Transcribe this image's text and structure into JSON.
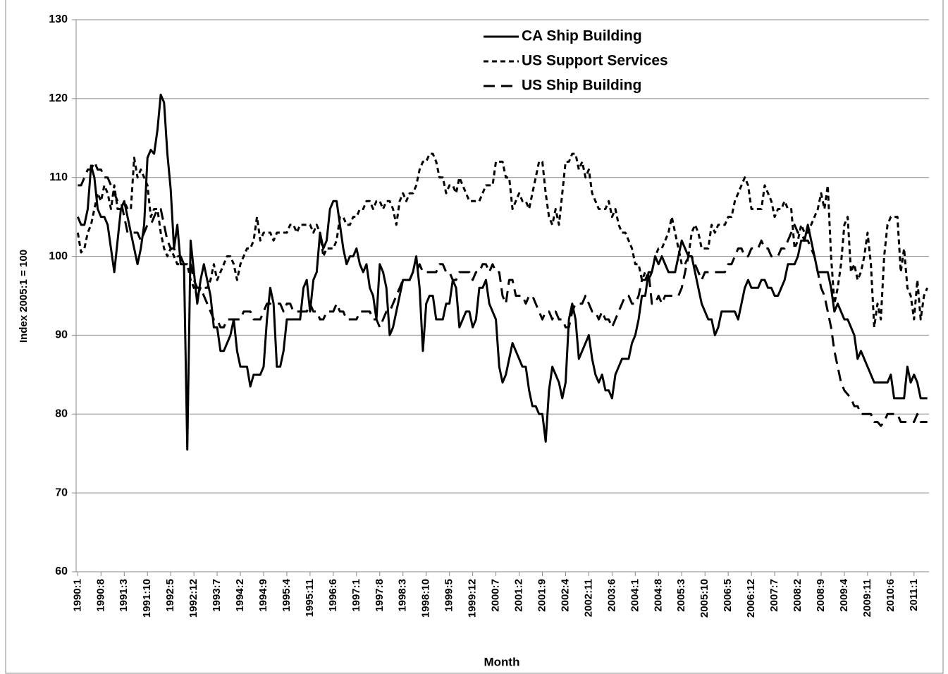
{
  "chart_data": {
    "type": "line",
    "xlabel": "Month",
    "ylabel": "Index 2005:1 = 100",
    "ylim": [
      60,
      130
    ],
    "yticks": [
      60,
      70,
      80,
      90,
      100,
      110,
      120,
      130
    ],
    "grid": true,
    "legend": "top",
    "categories": [
      "1990:1",
      null,
      null,
      null,
      null,
      null,
      null,
      "1990:8",
      null,
      null,
      null,
      null,
      null,
      null,
      "1991:3",
      null,
      null,
      null,
      null,
      null,
      null,
      "1991:10",
      null,
      null,
      null,
      null,
      null,
      null,
      "1992:5",
      null,
      null,
      null,
      null,
      null,
      null,
      "1992:12",
      null,
      null,
      null,
      null,
      null,
      null,
      "1993:7",
      null,
      null,
      null,
      null,
      null,
      null,
      "1994:2",
      null,
      null,
      null,
      null,
      null,
      null,
      "1994:9",
      null,
      null,
      null,
      null,
      null,
      null,
      "1995:4",
      null,
      null,
      null,
      null,
      null,
      null,
      "1995:11",
      null,
      null,
      null,
      null,
      null,
      null,
      "1996:6",
      null,
      null,
      null,
      null,
      null,
      null,
      "1997:1",
      null,
      null,
      null,
      null,
      null,
      null,
      "1997:8",
      null,
      null,
      null,
      null,
      null,
      null,
      "1998:3",
      null,
      null,
      null,
      null,
      null,
      null,
      "1998:10",
      null,
      null,
      null,
      null,
      null,
      null,
      "1999:5",
      null,
      null,
      null,
      null,
      null,
      null,
      "1999:12",
      null,
      null,
      null,
      null,
      null,
      null,
      "2000:7",
      null,
      null,
      null,
      null,
      null,
      null,
      "2001:2",
      null,
      null,
      null,
      null,
      null,
      null,
      "2001:9",
      null,
      null,
      null,
      null,
      null,
      null,
      "2002:4",
      null,
      null,
      null,
      null,
      null,
      null,
      "2002:11",
      null,
      null,
      null,
      null,
      null,
      null,
      "2003:6",
      null,
      null,
      null,
      null,
      null,
      null,
      "2004:1",
      null,
      null,
      null,
      null,
      null,
      null,
      "2004:8",
      null,
      null,
      null,
      null,
      null,
      null,
      "2005:3",
      null,
      null,
      null,
      null,
      null,
      null,
      "2005:10",
      null,
      null,
      null,
      null,
      null,
      null,
      "2006:5",
      null,
      null,
      null,
      null,
      null,
      null,
      "2006:12",
      null,
      null,
      null,
      null,
      null,
      null,
      "2007:7",
      null,
      null,
      null,
      null,
      null,
      null,
      "2008:2",
      null,
      null,
      null,
      null,
      null,
      null,
      "2008:9",
      null,
      null,
      null,
      null,
      null,
      null,
      "2009:4",
      null,
      null,
      null,
      null,
      null,
      null,
      "2009:11",
      null,
      null,
      null,
      null,
      null,
      null,
      "2010:6",
      null,
      null,
      null,
      null,
      null,
      null,
      "2011:1",
      null,
      null,
      null,
      null
    ],
    "series": [
      {
        "name": "CA Ship Building",
        "color": "#000000",
        "style": "solid",
        "values": [
          105,
          104,
          104,
          106,
          111.5,
          110,
          106,
          105,
          105,
          104,
          101,
          98,
          102,
          106,
          107,
          105,
          103,
          101,
          99,
          101,
          104,
          112.5,
          113.5,
          113,
          116,
          120.5,
          119.5,
          113,
          108.5,
          101,
          104,
          99,
          99,
          75.5,
          102,
          98,
          94,
          97,
          99,
          97,
          95,
          91,
          91,
          88,
          88,
          89,
          90,
          92,
          88,
          86,
          86,
          86,
          83.5,
          85,
          85,
          85,
          86,
          92,
          96,
          94,
          86,
          86,
          88,
          92,
          92,
          92,
          92,
          92,
          96,
          97,
          93,
          97,
          98,
          103,
          101,
          102,
          106,
          107,
          107,
          104,
          101,
          99,
          100,
          100,
          101,
          99,
          98,
          99,
          96,
          95,
          92,
          99,
          98,
          96,
          90,
          91,
          93,
          95,
          97,
          97,
          97,
          98,
          100,
          96,
          88,
          94,
          95,
          95,
          92,
          92,
          92,
          94,
          94,
          97,
          96,
          91,
          92,
          93,
          93,
          91,
          92,
          96,
          96,
          97,
          94,
          93,
          92,
          86,
          84,
          85,
          87,
          89,
          88,
          87,
          86,
          86,
          83,
          81,
          81,
          80,
          80,
          76.5,
          83,
          86,
          85,
          84,
          82,
          84,
          92,
          94,
          92,
          87,
          88,
          89,
          90,
          87,
          85,
          84,
          85,
          83,
          83,
          82,
          85,
          86,
          87,
          87,
          87,
          89,
          90,
          92,
          95,
          95,
          98,
          98,
          100,
          99,
          100,
          99,
          98,
          98,
          98,
          100,
          102,
          101,
          100,
          100,
          98,
          96,
          94,
          93,
          92,
          92,
          90,
          91,
          93,
          93,
          93,
          93,
          93,
          92,
          94,
          96,
          97,
          96,
          96,
          96,
          97,
          97,
          96,
          96,
          95,
          95,
          96,
          97,
          99,
          99,
          99,
          100,
          102,
          102,
          104,
          102,
          100,
          98,
          98,
          98,
          98,
          96,
          93,
          94,
          93,
          92,
          92,
          91,
          90,
          87,
          88,
          87,
          86,
          85,
          84,
          84,
          84,
          84,
          84,
          85,
          82,
          82,
          82,
          82,
          86,
          84,
          85,
          84,
          82,
          82,
          82
        ]
      },
      {
        "name": "US Support Services",
        "color": "#000000",
        "style": "short-dash",
        "values": [
          103,
          100.5,
          101,
          103,
          104,
          106,
          108,
          107,
          109,
          108,
          106,
          109,
          106,
          106,
          107,
          106,
          106,
          112.5,
          110,
          111,
          110,
          109,
          105,
          106,
          106,
          103,
          101,
          100,
          101,
          100,
          99,
          99,
          99,
          99,
          97,
          96,
          95,
          96,
          96,
          96,
          97,
          99,
          97,
          98,
          99,
          100,
          100,
          99,
          97,
          99,
          100,
          101,
          101,
          102,
          105,
          102,
          103,
          103,
          103,
          102,
          103,
          103,
          103,
          103,
          104,
          104,
          103,
          104,
          104,
          104,
          104,
          103,
          104,
          103,
          100,
          101,
          101,
          101,
          102,
          105,
          105,
          104,
          104,
          105,
          105,
          106,
          106,
          107,
          107,
          106,
          107,
          107,
          106,
          107,
          107,
          106,
          104,
          107,
          108,
          107,
          108,
          108,
          109,
          111,
          112,
          112,
          113,
          113,
          112,
          110,
          110,
          108,
          109,
          109,
          108,
          110,
          109,
          108,
          107,
          107,
          107,
          107,
          108,
          109,
          109,
          109,
          112,
          112,
          112,
          110,
          110,
          106,
          107,
          108,
          107,
          107,
          106,
          108,
          110,
          112,
          112,
          108,
          105,
          104,
          106,
          104,
          108,
          112,
          112,
          113,
          113,
          111,
          112,
          110,
          111,
          108,
          107,
          106,
          106,
          106,
          107,
          105,
          106,
          104,
          103,
          103,
          102,
          101,
          99,
          99,
          97,
          98,
          97,
          98,
          100,
          101,
          101,
          102,
          103,
          105,
          103,
          101,
          99,
          99,
          100,
          103,
          104,
          103,
          101,
          101,
          101,
          104,
          103,
          104,
          104,
          104,
          105,
          105,
          107,
          108,
          109,
          110,
          109,
          106,
          106,
          106,
          106,
          109,
          108,
          107,
          105,
          106,
          106,
          107,
          106,
          106,
          101,
          102,
          104,
          103,
          103,
          104,
          105,
          106,
          108,
          106,
          109,
          100,
          94,
          96,
          99,
          104,
          105,
          98,
          99,
          97,
          98,
          100,
          103,
          99,
          91,
          94,
          92,
          100,
          104,
          105,
          105,
          105,
          98,
          101,
          96,
          95,
          92,
          97,
          92,
          95,
          96
        ]
      },
      {
        "name": "US Ship Building",
        "color": "#000000",
        "style": "long-dash",
        "values": [
          109,
          109,
          110,
          111,
          111,
          112,
          111,
          111,
          110,
          110,
          109,
          108,
          107,
          107,
          105,
          103,
          103,
          103,
          103,
          102,
          103,
          104,
          104,
          105,
          106,
          106,
          104,
          102,
          101,
          101,
          100,
          100,
          99,
          99,
          99,
          97,
          96,
          96,
          95,
          94,
          93,
          92,
          92,
          91,
          91,
          92,
          92,
          92,
          92,
          92,
          93,
          93,
          93,
          92,
          92,
          92,
          93,
          94,
          94,
          94,
          94,
          94,
          93,
          94,
          94,
          93,
          93,
          93,
          93,
          93,
          94,
          93,
          93,
          92,
          92,
          93,
          93,
          93,
          94,
          93,
          93,
          92,
          92,
          92,
          92,
          93,
          93,
          93,
          93,
          92,
          92,
          91,
          92,
          93,
          93,
          94,
          95,
          96,
          97,
          97,
          97,
          98,
          98,
          99,
          98,
          98,
          98,
          98,
          98,
          99,
          99,
          98,
          98,
          97,
          97,
          98,
          98,
          98,
          98,
          97,
          98,
          98,
          99,
          99,
          98,
          99,
          98,
          98,
          95,
          94,
          97,
          97,
          95,
          95,
          95,
          94,
          95,
          95,
          94,
          93,
          92,
          93,
          93,
          92,
          93,
          92,
          92,
          91,
          91,
          93,
          94,
          94,
          94,
          95,
          94,
          93,
          93,
          92,
          93,
          92,
          92,
          91,
          92,
          93,
          94,
          95,
          95,
          94,
          94,
          95,
          97,
          97,
          98,
          94,
          94,
          95,
          94,
          95,
          95,
          95,
          95,
          95,
          96,
          98,
          100,
          100,
          99,
          98,
          97,
          98,
          98,
          98,
          98,
          98,
          98,
          98,
          99,
          99,
          100,
          101,
          101,
          100,
          100,
          101,
          101,
          101,
          102,
          101,
          101,
          100,
          100,
          100,
          101,
          101,
          102,
          103,
          104,
          103,
          103,
          102,
          102,
          101,
          100,
          98,
          96,
          95,
          93,
          91,
          88,
          86,
          84,
          83,
          82.5,
          82,
          81,
          81,
          80,
          80,
          80,
          80,
          79,
          79,
          78.5,
          79,
          80,
          80,
          80,
          80,
          79,
          79,
          79,
          79,
          79,
          80,
          79,
          79,
          79
        ]
      }
    ]
  }
}
